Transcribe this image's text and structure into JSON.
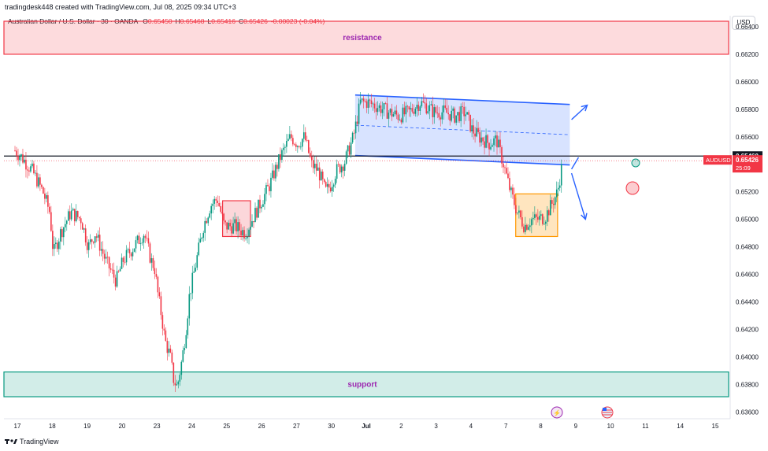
{
  "header": {
    "caption": "tradingdesk448 created with TradingView.com, Jul 08, 2025 09:34 UTC+3",
    "symbol": "Australian Dollar / U.S. Dollar · 30 · OANDA",
    "ohlc": [
      {
        "key": "O",
        "value": "0.65450"
      },
      {
        "key": "H",
        "value": "0.65468"
      },
      {
        "key": "L",
        "value": "0.65416"
      },
      {
        "key": "C",
        "value": "0.65426"
      },
      {
        "key": "",
        "value": "-0.00023 (-0.04%)"
      }
    ],
    "currency": "USD"
  },
  "footer": {
    "logo_icon": "tradingview-logo-icon",
    "brand": "TradingView"
  },
  "chart_data": {
    "type": "candlestick",
    "y_ticks": [
      "0.66400",
      "0.66200",
      "0.66000",
      "0.65800",
      "0.65600",
      "0.65460",
      "0.65400",
      "0.65200",
      "0.65000",
      "0.64800",
      "0.64600",
      "0.64400",
      "0.64200",
      "0.64000",
      "0.63800",
      "0.63600"
    ],
    "ylim": [
      0.6355,
      0.6648
    ],
    "x_ticks": [
      "17",
      "18",
      "19",
      "20",
      "23",
      "24",
      "25",
      "26",
      "27",
      "30",
      "Jul",
      "2",
      "3",
      "4",
      "7",
      "8",
      "9",
      "10",
      "11",
      "14",
      "15"
    ],
    "current_price": {
      "label": "AUDUSD",
      "value": "0.65426",
      "countdown": "25:09"
    },
    "highlight_level": {
      "value": "0.65460"
    },
    "zones": [
      {
        "label": "resistance",
        "low": 0.662,
        "high": 0.6644,
        "color": "#f23645"
      },
      {
        "label": "support",
        "low": 0.6371,
        "high": 0.6389,
        "color": "#089981"
      }
    ],
    "channel": {
      "color": "#2962ff"
    },
    "boxes": [
      {
        "color": "#f23645"
      },
      {
        "color": "#ff9800"
      }
    ],
    "colors": {
      "up": "#089981",
      "down": "#f23645",
      "arrow": "#2962ff"
    },
    "price_path": [
      [
        0,
        0.655
      ],
      [
        0.2,
        0.6545
      ],
      [
        0.5,
        0.6535
      ],
      [
        0.8,
        0.652
      ],
      [
        1.0,
        0.6505
      ],
      [
        1.1,
        0.6475
      ],
      [
        1.3,
        0.649
      ],
      [
        1.6,
        0.6505
      ],
      [
        1.9,
        0.65
      ],
      [
        2.1,
        0.648
      ],
      [
        2.3,
        0.649
      ],
      [
        2.6,
        0.647
      ],
      [
        2.9,
        0.6455
      ],
      [
        3.1,
        0.647
      ],
      [
        3.4,
        0.648
      ],
      [
        3.7,
        0.649
      ],
      [
        3.9,
        0.647
      ],
      [
        4.0,
        0.6465
      ],
      [
        4.1,
        0.6445
      ],
      [
        4.2,
        0.643
      ],
      [
        4.3,
        0.6412
      ],
      [
        4.45,
        0.64
      ],
      [
        4.55,
        0.6383
      ],
      [
        4.65,
        0.6378
      ],
      [
        4.8,
        0.64
      ],
      [
        4.9,
        0.642
      ],
      [
        5.0,
        0.6445
      ],
      [
        5.2,
        0.647
      ],
      [
        5.4,
        0.6495
      ],
      [
        5.6,
        0.651
      ],
      [
        5.8,
        0.6515
      ],
      [
        6.0,
        0.6495
      ],
      [
        6.3,
        0.6495
      ],
      [
        6.6,
        0.649
      ],
      [
        6.9,
        0.6505
      ],
      [
        7.1,
        0.6515
      ],
      [
        7.3,
        0.6525
      ],
      [
        7.6,
        0.6545
      ],
      [
        7.9,
        0.656
      ],
      [
        8.1,
        0.6555
      ],
      [
        8.3,
        0.656
      ],
      [
        8.5,
        0.654
      ],
      [
        8.7,
        0.6535
      ],
      [
        8.9,
        0.652
      ],
      [
        9.05,
        0.6525
      ],
      [
        9.2,
        0.6535
      ],
      [
        9.45,
        0.6542
      ],
      [
        9.7,
        0.656
      ],
      [
        9.9,
        0.6585
      ],
      [
        10.1,
        0.6585
      ],
      [
        10.4,
        0.6582
      ],
      [
        10.7,
        0.6578
      ],
      [
        11.0,
        0.6575
      ],
      [
        11.3,
        0.6578
      ],
      [
        11.6,
        0.6585
      ],
      [
        11.8,
        0.6582
      ],
      [
        12.0,
        0.6578
      ],
      [
        12.3,
        0.6578
      ],
      [
        12.6,
        0.6575
      ],
      [
        12.9,
        0.6578
      ],
      [
        13.1,
        0.6565
      ],
      [
        13.3,
        0.656
      ],
      [
        13.6,
        0.6555
      ],
      [
        13.8,
        0.6558
      ],
      [
        14.0,
        0.654
      ],
      [
        14.2,
        0.652
      ],
      [
        14.4,
        0.6505
      ],
      [
        14.6,
        0.6495
      ],
      [
        14.8,
        0.65
      ],
      [
        15.0,
        0.65
      ],
      [
        15.2,
        0.6502
      ],
      [
        15.4,
        0.6512
      ],
      [
        15.55,
        0.652
      ],
      [
        15.7,
        0.6543
      ]
    ]
  }
}
